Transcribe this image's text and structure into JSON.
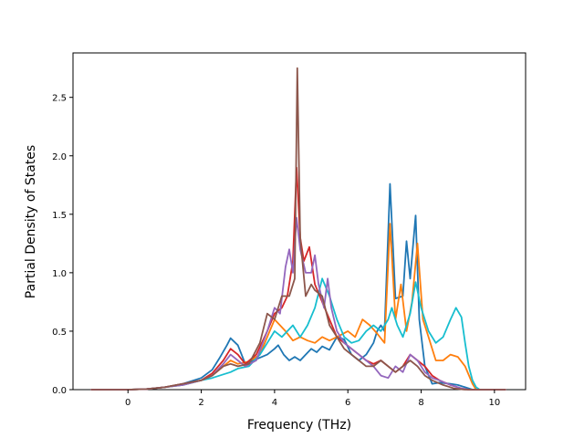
{
  "chart_data": {
    "type": "line",
    "title": "",
    "xlabel": "Frequency (THz)",
    "ylabel": "Partial Density of States",
    "xlim": [
      -1.5,
      10.85
    ],
    "ylim": [
      0,
      2.88
    ],
    "xticks": [
      0,
      2,
      4,
      6,
      8,
      10
    ],
    "yticks": [
      0.0,
      0.5,
      1.0,
      1.5,
      2.0,
      2.5
    ],
    "xtick_labels": [
      "0",
      "2",
      "4",
      "6",
      "8",
      "10"
    ],
    "ytick_labels": [
      "0.0",
      "0.5",
      "1.0",
      "1.5",
      "2.0",
      "2.5"
    ],
    "grid": false,
    "legend": "none",
    "series": [
      {
        "color": "#1f77b4",
        "points": [
          [
            -1.0,
            0
          ],
          [
            0,
            0
          ],
          [
            0.5,
            0.005
          ],
          [
            1,
            0.02
          ],
          [
            1.5,
            0.05
          ],
          [
            2,
            0.1
          ],
          [
            2.3,
            0.17
          ],
          [
            2.5,
            0.27
          ],
          [
            2.7,
            0.38
          ],
          [
            2.8,
            0.44
          ],
          [
            3.0,
            0.38
          ],
          [
            3.2,
            0.22
          ],
          [
            3.5,
            0.26
          ],
          [
            3.8,
            0.3
          ],
          [
            4.0,
            0.35
          ],
          [
            4.1,
            0.38
          ],
          [
            4.25,
            0.3
          ],
          [
            4.4,
            0.25
          ],
          [
            4.55,
            0.28
          ],
          [
            4.7,
            0.25
          ],
          [
            4.85,
            0.3
          ],
          [
            5.0,
            0.35
          ],
          [
            5.15,
            0.32
          ],
          [
            5.3,
            0.37
          ],
          [
            5.5,
            0.34
          ],
          [
            5.7,
            0.45
          ],
          [
            5.9,
            0.43
          ],
          [
            6.1,
            0.3
          ],
          [
            6.3,
            0.25
          ],
          [
            6.5,
            0.3
          ],
          [
            6.7,
            0.4
          ],
          [
            6.8,
            0.5
          ],
          [
            6.9,
            0.55
          ],
          [
            7.0,
            0.5
          ],
          [
            7.15,
            1.76
          ],
          [
            7.3,
            0.78
          ],
          [
            7.5,
            0.8
          ],
          [
            7.6,
            1.27
          ],
          [
            7.7,
            0.95
          ],
          [
            7.85,
            1.49
          ],
          [
            7.95,
            0.6
          ],
          [
            8.1,
            0.2
          ],
          [
            8.3,
            0.05
          ],
          [
            8.5,
            0.06
          ],
          [
            8.8,
            0.05
          ],
          [
            9.0,
            0.04
          ],
          [
            9.2,
            0.02
          ],
          [
            9.4,
            0
          ],
          [
            10.3,
            0
          ]
        ]
      },
      {
        "color": "#ff7f0e",
        "points": [
          [
            -1.0,
            0
          ],
          [
            0,
            0
          ],
          [
            0.5,
            0.005
          ],
          [
            1,
            0.02
          ],
          [
            1.5,
            0.04
          ],
          [
            2,
            0.08
          ],
          [
            2.3,
            0.12
          ],
          [
            2.6,
            0.2
          ],
          [
            2.8,
            0.25
          ],
          [
            3.0,
            0.22
          ],
          [
            3.3,
            0.24
          ],
          [
            3.6,
            0.3
          ],
          [
            3.8,
            0.45
          ],
          [
            4.0,
            0.6
          ],
          [
            4.15,
            0.55
          ],
          [
            4.3,
            0.5
          ],
          [
            4.5,
            0.42
          ],
          [
            4.7,
            0.45
          ],
          [
            4.9,
            0.42
          ],
          [
            5.1,
            0.4
          ],
          [
            5.3,
            0.45
          ],
          [
            5.5,
            0.42
          ],
          [
            5.7,
            0.45
          ],
          [
            6.0,
            0.5
          ],
          [
            6.2,
            0.45
          ],
          [
            6.4,
            0.6
          ],
          [
            6.6,
            0.55
          ],
          [
            6.8,
            0.48
          ],
          [
            7.0,
            0.4
          ],
          [
            7.15,
            1.42
          ],
          [
            7.3,
            0.6
          ],
          [
            7.45,
            0.9
          ],
          [
            7.6,
            0.5
          ],
          [
            7.75,
            0.75
          ],
          [
            7.9,
            1.25
          ],
          [
            8.05,
            0.6
          ],
          [
            8.2,
            0.45
          ],
          [
            8.4,
            0.25
          ],
          [
            8.6,
            0.25
          ],
          [
            8.8,
            0.3
          ],
          [
            9.0,
            0.28
          ],
          [
            9.2,
            0.2
          ],
          [
            9.4,
            0.05
          ],
          [
            9.5,
            0
          ],
          [
            10.3,
            0
          ]
        ]
      },
      {
        "color": "#17becf",
        "points": [
          [
            -1.0,
            0
          ],
          [
            0,
            0
          ],
          [
            0.5,
            0.005
          ],
          [
            1,
            0.02
          ],
          [
            1.5,
            0.04
          ],
          [
            2,
            0.08
          ],
          [
            2.3,
            0.1
          ],
          [
            2.6,
            0.13
          ],
          [
            2.8,
            0.15
          ],
          [
            3.0,
            0.18
          ],
          [
            3.3,
            0.2
          ],
          [
            3.6,
            0.3
          ],
          [
            3.8,
            0.4
          ],
          [
            4.0,
            0.5
          ],
          [
            4.2,
            0.45
          ],
          [
            4.5,
            0.55
          ],
          [
            4.7,
            0.45
          ],
          [
            4.9,
            0.55
          ],
          [
            5.1,
            0.7
          ],
          [
            5.3,
            0.95
          ],
          [
            5.5,
            0.8
          ],
          [
            5.7,
            0.6
          ],
          [
            5.9,
            0.45
          ],
          [
            6.1,
            0.4
          ],
          [
            6.3,
            0.42
          ],
          [
            6.5,
            0.5
          ],
          [
            6.7,
            0.55
          ],
          [
            6.9,
            0.5
          ],
          [
            7.1,
            0.6
          ],
          [
            7.2,
            0.7
          ],
          [
            7.35,
            0.55
          ],
          [
            7.5,
            0.45
          ],
          [
            7.7,
            0.65
          ],
          [
            7.85,
            0.92
          ],
          [
            8.0,
            0.7
          ],
          [
            8.2,
            0.5
          ],
          [
            8.4,
            0.4
          ],
          [
            8.6,
            0.45
          ],
          [
            8.8,
            0.6
          ],
          [
            8.95,
            0.7
          ],
          [
            9.1,
            0.62
          ],
          [
            9.2,
            0.4
          ],
          [
            9.3,
            0.2
          ],
          [
            9.4,
            0.08
          ],
          [
            9.5,
            0.02
          ],
          [
            9.6,
            0
          ],
          [
            10.3,
            0
          ]
        ]
      },
      {
        "color": "#d62728",
        "points": [
          [
            -1.0,
            0
          ],
          [
            0,
            0
          ],
          [
            0.5,
            0.005
          ],
          [
            1,
            0.02
          ],
          [
            1.5,
            0.05
          ],
          [
            2,
            0.08
          ],
          [
            2.3,
            0.14
          ],
          [
            2.6,
            0.25
          ],
          [
            2.8,
            0.35
          ],
          [
            3.0,
            0.3
          ],
          [
            3.2,
            0.22
          ],
          [
            3.5,
            0.3
          ],
          [
            3.8,
            0.5
          ],
          [
            4.0,
            0.65
          ],
          [
            4.2,
            0.7
          ],
          [
            4.35,
            0.8
          ],
          [
            4.5,
            1.1
          ],
          [
            4.6,
            1.9
          ],
          [
            4.7,
            1.3
          ],
          [
            4.8,
            1.1
          ],
          [
            4.95,
            1.22
          ],
          [
            5.1,
            0.9
          ],
          [
            5.3,
            0.75
          ],
          [
            5.5,
            0.6
          ],
          [
            5.7,
            0.45
          ],
          [
            5.9,
            0.4
          ],
          [
            6.1,
            0.35
          ],
          [
            6.3,
            0.3
          ],
          [
            6.5,
            0.25
          ],
          [
            6.7,
            0.22
          ],
          [
            6.9,
            0.25
          ],
          [
            7.1,
            0.2
          ],
          [
            7.3,
            0.15
          ],
          [
            7.5,
            0.2
          ],
          [
            7.7,
            0.3
          ],
          [
            7.9,
            0.25
          ],
          [
            8.1,
            0.2
          ],
          [
            8.3,
            0.12
          ],
          [
            8.5,
            0.08
          ],
          [
            8.8,
            0.04
          ],
          [
            9.1,
            0.01
          ],
          [
            9.3,
            0
          ],
          [
            10.3,
            0
          ]
        ]
      },
      {
        "color": "#9467bd",
        "points": [
          [
            -1.0,
            0
          ],
          [
            0,
            0
          ],
          [
            0.5,
            0.005
          ],
          [
            1,
            0.02
          ],
          [
            1.5,
            0.04
          ],
          [
            2,
            0.08
          ],
          [
            2.3,
            0.12
          ],
          [
            2.6,
            0.22
          ],
          [
            2.8,
            0.3
          ],
          [
            3.0,
            0.25
          ],
          [
            3.2,
            0.2
          ],
          [
            3.5,
            0.25
          ],
          [
            3.8,
            0.5
          ],
          [
            4.0,
            0.7
          ],
          [
            4.15,
            0.65
          ],
          [
            4.3,
            1.05
          ],
          [
            4.4,
            1.2
          ],
          [
            4.5,
            1.0
          ],
          [
            4.6,
            1.47
          ],
          [
            4.7,
            1.2
          ],
          [
            4.85,
            1.0
          ],
          [
            5.0,
            1.0
          ],
          [
            5.1,
            1.15
          ],
          [
            5.2,
            0.9
          ],
          [
            5.35,
            0.7
          ],
          [
            5.45,
            0.95
          ],
          [
            5.55,
            0.7
          ],
          [
            5.7,
            0.5
          ],
          [
            5.9,
            0.4
          ],
          [
            6.1,
            0.35
          ],
          [
            6.3,
            0.3
          ],
          [
            6.5,
            0.25
          ],
          [
            6.7,
            0.2
          ],
          [
            6.9,
            0.12
          ],
          [
            7.1,
            0.1
          ],
          [
            7.3,
            0.2
          ],
          [
            7.5,
            0.15
          ],
          [
            7.7,
            0.3
          ],
          [
            7.9,
            0.25
          ],
          [
            8.1,
            0.15
          ],
          [
            8.3,
            0.1
          ],
          [
            8.5,
            0.08
          ],
          [
            8.8,
            0.04
          ],
          [
            9.1,
            0.01
          ],
          [
            9.3,
            0
          ],
          [
            10.3,
            0
          ]
        ]
      },
      {
        "color": "#8c564b",
        "points": [
          [
            -1.0,
            0
          ],
          [
            0,
            0
          ],
          [
            0.5,
            0.005
          ],
          [
            1,
            0.02
          ],
          [
            1.5,
            0.05
          ],
          [
            2,
            0.08
          ],
          [
            2.3,
            0.12
          ],
          [
            2.6,
            0.2
          ],
          [
            2.8,
            0.22
          ],
          [
            3.0,
            0.2
          ],
          [
            3.3,
            0.22
          ],
          [
            3.6,
            0.4
          ],
          [
            3.8,
            0.65
          ],
          [
            4.0,
            0.6
          ],
          [
            4.2,
            0.8
          ],
          [
            4.4,
            0.8
          ],
          [
            4.55,
            0.95
          ],
          [
            4.62,
            2.75
          ],
          [
            4.7,
            1.3
          ],
          [
            4.85,
            0.8
          ],
          [
            5.0,
            0.9
          ],
          [
            5.1,
            0.85
          ],
          [
            5.3,
            0.8
          ],
          [
            5.5,
            0.55
          ],
          [
            5.7,
            0.45
          ],
          [
            5.9,
            0.35
          ],
          [
            6.1,
            0.3
          ],
          [
            6.3,
            0.25
          ],
          [
            6.5,
            0.2
          ],
          [
            6.7,
            0.2
          ],
          [
            6.9,
            0.25
          ],
          [
            7.1,
            0.2
          ],
          [
            7.3,
            0.15
          ],
          [
            7.5,
            0.2
          ],
          [
            7.7,
            0.25
          ],
          [
            7.9,
            0.2
          ],
          [
            8.1,
            0.12
          ],
          [
            8.3,
            0.08
          ],
          [
            8.6,
            0.04
          ],
          [
            8.9,
            0.01
          ],
          [
            9.2,
            0
          ],
          [
            10.3,
            0
          ]
        ]
      }
    ]
  }
}
